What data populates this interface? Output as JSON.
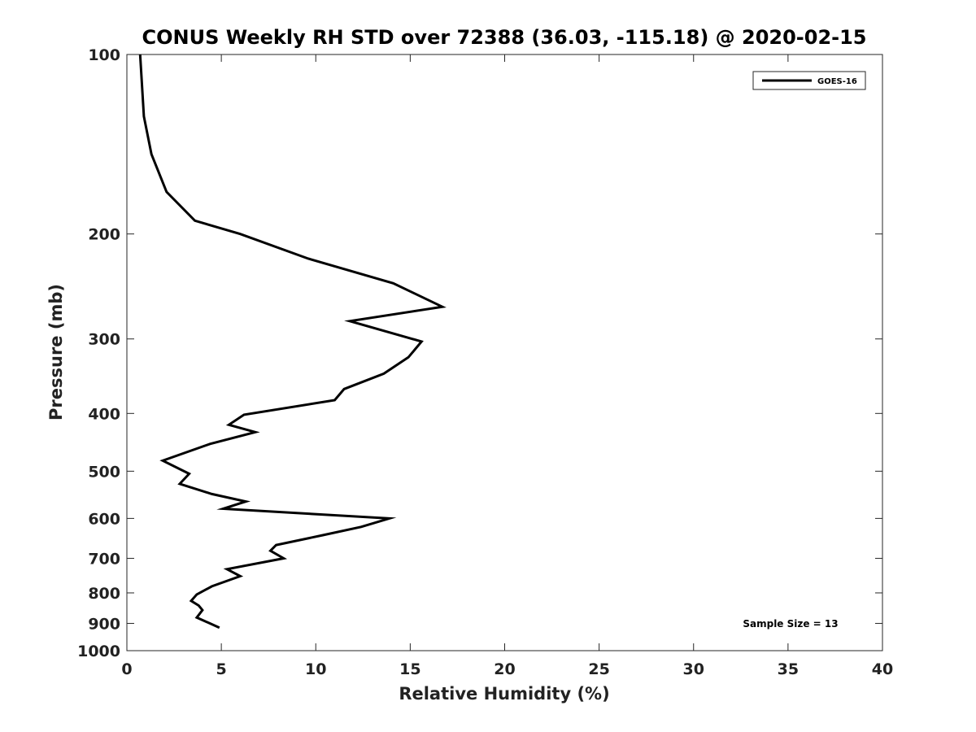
{
  "chart_data": {
    "type": "line",
    "title": "CONUS Weekly RH STD over 72388 (36.03, -115.18) @ 2020-02-15",
    "xlabel": "Relative Humidity (%)",
    "ylabel": "Pressure (mb)",
    "xlim": [
      0,
      40
    ],
    "ylim": [
      100,
      1000
    ],
    "yscale": "log",
    "y_reversed": true,
    "grid": false,
    "legend_position": "top-right",
    "xticks": [
      0,
      5,
      10,
      15,
      20,
      25,
      30,
      35,
      40
    ],
    "xtick_labels": [
      "0",
      "5",
      "10",
      "15",
      "20",
      "25",
      "30",
      "35",
      "40"
    ],
    "yticks": [
      100,
      200,
      300,
      400,
      500,
      600,
      700,
      800,
      900,
      1000
    ],
    "ytick_labels": [
      "100",
      "200",
      "300",
      "400",
      "500",
      "600",
      "700",
      "800",
      "900",
      "1000"
    ],
    "series": [
      {
        "name": "GOES-16",
        "color": "#000000",
        "x": [
          0.7,
          0.9,
          1.3,
          2.1,
          3.6,
          6.0,
          9.6,
          14.1,
          16.7,
          11.8,
          15.6,
          14.9,
          13.6,
          11.5,
          11.0,
          6.2,
          5.4,
          6.8,
          4.4,
          1.9,
          3.3,
          2.8,
          4.5,
          6.3,
          5.1,
          13.9,
          12.4,
          10.4,
          7.9,
          7.6,
          8.3,
          5.3,
          6.0,
          4.5,
          3.7,
          3.4,
          3.8,
          4.0,
          3.7,
          4.4,
          4.9
        ],
        "y": [
          100,
          127,
          147,
          170,
          190,
          200,
          220,
          242,
          265,
          280,
          303,
          322,
          343,
          364,
          380,
          402,
          418,
          430,
          450,
          480,
          505,
          525,
          546,
          562,
          578,
          600,
          620,
          640,
          665,
          680,
          700,
          730,
          750,
          780,
          805,
          825,
          840,
          855,
          880,
          900,
          915
        ]
      }
    ],
    "annotations": [
      {
        "text": "Sample Size = 13"
      }
    ]
  }
}
